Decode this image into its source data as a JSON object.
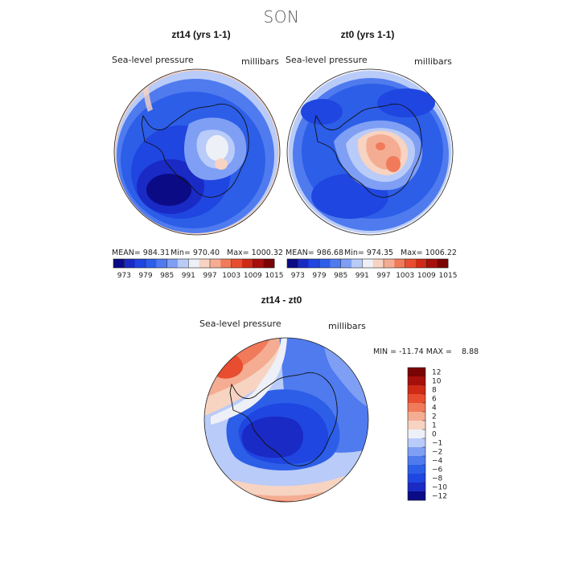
{
  "page": {
    "title": "SON"
  },
  "chart_data": [
    {
      "type": "heatmap",
      "title": "zt14 (yrs 1-1)",
      "variable": "Sea-level pressure",
      "units": "millibars",
      "stats": {
        "mean": "MEAN= 984.31",
        "min": "Min= 970.40",
        "max": "Max= 1000.32"
      },
      "colorbar": {
        "colors": [
          "#0b0b86",
          "#1a2ac4",
          "#1f46e0",
          "#2d5ee8",
          "#4f7bef",
          "#7f9ff4",
          "#b9cbf8",
          "#eef0f7",
          "#f7d3c2",
          "#f4ad92",
          "#f07a5a",
          "#e84d2f",
          "#cf2a16",
          "#a70f0b",
          "#7a0404"
        ],
        "tick_labels": [
          "973",
          "979",
          "985",
          "991",
          "997",
          "1003",
          "1009",
          "1015"
        ]
      }
    },
    {
      "type": "heatmap",
      "title": "zt0 (yrs 1-1)",
      "variable": "Sea-level pressure",
      "units": "millibars",
      "stats": {
        "mean": "MEAN= 986.68",
        "min": "Min= 974.35",
        "max": "Max= 1006.22"
      },
      "colorbar": {
        "colors": [
          "#0b0b86",
          "#1a2ac4",
          "#1f46e0",
          "#2d5ee8",
          "#4f7bef",
          "#7f9ff4",
          "#b9cbf8",
          "#eef0f7",
          "#f7d3c2",
          "#f4ad92",
          "#f07a5a",
          "#e84d2f",
          "#cf2a16",
          "#a70f0b",
          "#7a0404"
        ],
        "tick_labels": [
          "973",
          "979",
          "985",
          "991",
          "997",
          "1003",
          "1009",
          "1015"
        ]
      }
    },
    {
      "type": "heatmap",
      "title": "zt14 - zt0",
      "variable": "Sea-level pressure",
      "units": "millibars",
      "stats": {
        "minmax": "MIN = -11.74 MAX =    8.88"
      },
      "colorbar": {
        "colors_top_to_bottom": [
          "#7a0404",
          "#a70f0b",
          "#cf2a16",
          "#e84d2f",
          "#f07a5a",
          "#f4ad92",
          "#f7d3c2",
          "#eef0f7",
          "#b9cbf8",
          "#7f9ff4",
          "#4f7bef",
          "#2d5ee8",
          "#1f46e0",
          "#1a2ac4",
          "#0b0b86"
        ],
        "tick_labels": [
          "12",
          "10",
          "8",
          "6",
          "4",
          "2",
          "1",
          "0",
          "−1",
          "−2",
          "−4",
          "−6",
          "−8",
          "−10",
          "−12"
        ]
      }
    }
  ]
}
